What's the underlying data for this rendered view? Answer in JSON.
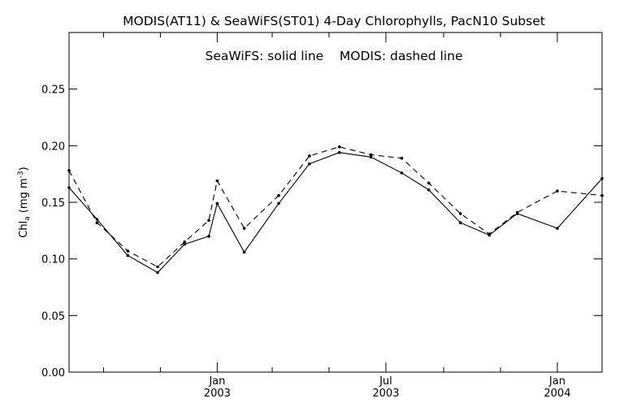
{
  "chart_data": {
    "type": "line",
    "title": "MODIS(AT11) & SeaWiFS(ST01) 4-Day Chlorophylls, PacN10 Subset",
    "legend_text": "SeaWiFS: solid line    MODIS: dashed line",
    "ylabel_parts": {
      "main": "Chl",
      "sub": "a",
      "units_open": " (mg m",
      "sup": "-3",
      "units_close": ")"
    },
    "ylim": [
      0.0,
      0.3
    ],
    "y_ticks": [
      {
        "value": 0.0,
        "label": "0.00"
      },
      {
        "value": 0.05,
        "label": "0.05"
      },
      {
        "value": 0.1,
        "label": "0.10"
      },
      {
        "value": 0.15,
        "label": "0.15"
      },
      {
        "value": 0.2,
        "label": "0.20"
      },
      {
        "value": 0.25,
        "label": "0.25"
      }
    ],
    "xlim": [
      "2002-07-26",
      "2004-02-18"
    ],
    "x_major_ticks": [
      {
        "date": "2003-01-01",
        "label": "Jan",
        "year": "2003"
      },
      {
        "date": "2003-07-01",
        "label": "Jul",
        "year": "2003"
      },
      {
        "date": "2004-01-01",
        "label": "Jan",
        "year": "2004"
      }
    ],
    "x_minor_ticks": [
      "2002-09-01",
      "2002-11-01",
      "2003-03-01",
      "2003-05-01",
      "2003-09-01",
      "2003-11-01"
    ],
    "grid": false,
    "series": [
      {
        "name": "SeaWiFS",
        "style": "solid",
        "points": [
          {
            "x": "2002-07-26",
            "y": 0.163
          },
          {
            "x": "2002-08-25",
            "y": 0.135
          },
          {
            "x": "2002-09-27",
            "y": 0.103
          },
          {
            "x": "2002-10-29",
            "y": 0.088
          },
          {
            "x": "2002-11-27",
            "y": 0.113
          },
          {
            "x": "2002-12-23",
            "y": 0.12
          },
          {
            "x": "2003-01-01",
            "y": 0.149
          },
          {
            "x": "2003-01-30",
            "y": 0.106
          },
          {
            "x": "2003-03-08",
            "y": 0.149
          },
          {
            "x": "2003-04-10",
            "y": 0.184
          },
          {
            "x": "2003-05-12",
            "y": 0.194
          },
          {
            "x": "2003-06-15",
            "y": 0.19
          },
          {
            "x": "2003-07-18",
            "y": 0.176
          },
          {
            "x": "2003-08-16",
            "y": 0.161
          },
          {
            "x": "2003-09-19",
            "y": 0.132
          },
          {
            "x": "2003-10-20",
            "y": 0.121
          },
          {
            "x": "2003-11-19",
            "y": 0.14
          },
          {
            "x": "2004-01-01",
            "y": 0.127
          },
          {
            "x": "2004-02-18",
            "y": 0.171
          }
        ]
      },
      {
        "name": "MODIS",
        "style": "dashed",
        "points": [
          {
            "x": "2002-07-26",
            "y": 0.178
          },
          {
            "x": "2002-08-25",
            "y": 0.132
          },
          {
            "x": "2002-09-27",
            "y": 0.107
          },
          {
            "x": "2002-10-29",
            "y": 0.093
          },
          {
            "x": "2002-11-27",
            "y": 0.115
          },
          {
            "x": "2002-12-23",
            "y": 0.134
          },
          {
            "x": "2003-01-01",
            "y": 0.169
          },
          {
            "x": "2003-01-30",
            "y": 0.127
          },
          {
            "x": "2003-03-08",
            "y": 0.156
          },
          {
            "x": "2003-04-10",
            "y": 0.191
          },
          {
            "x": "2003-05-12",
            "y": 0.199
          },
          {
            "x": "2003-06-15",
            "y": 0.192
          },
          {
            "x": "2003-07-18",
            "y": 0.189
          },
          {
            "x": "2003-08-16",
            "y": 0.167
          },
          {
            "x": "2003-09-19",
            "y": 0.14
          },
          {
            "x": "2003-10-20",
            "y": 0.122
          },
          {
            "x": "2003-11-19",
            "y": 0.141
          },
          {
            "x": "2004-01-01",
            "y": 0.16
          },
          {
            "x": "2004-02-18",
            "y": 0.156
          }
        ]
      }
    ]
  }
}
